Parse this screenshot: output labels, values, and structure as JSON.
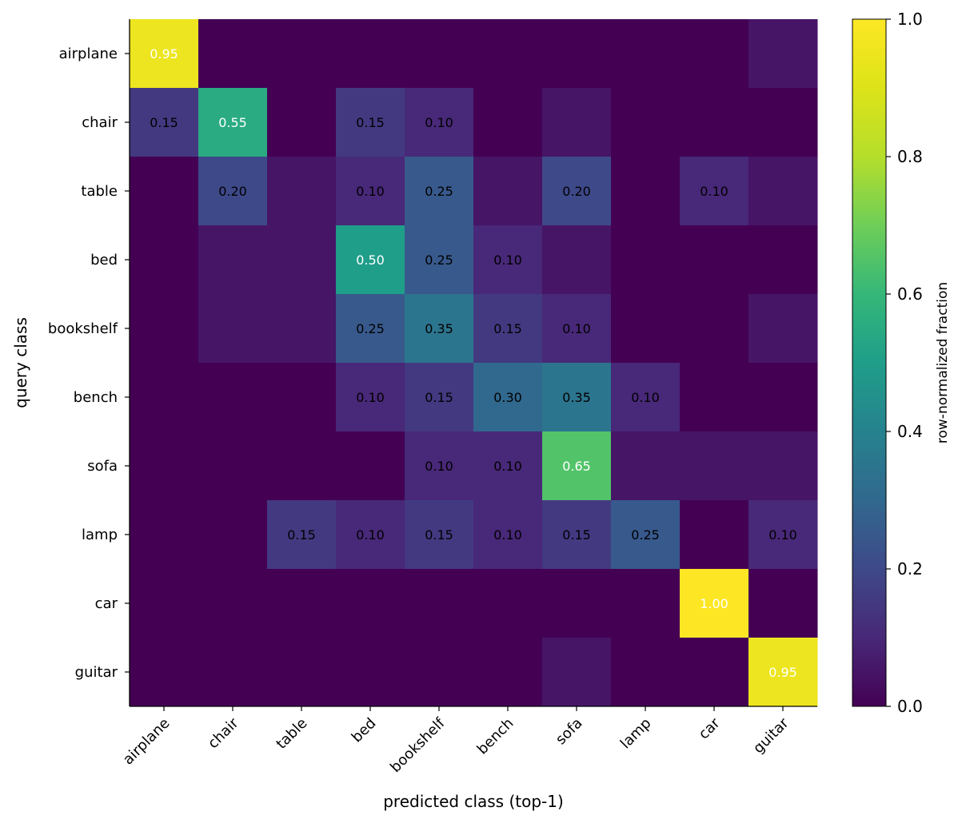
{
  "chart_data": {
    "type": "heatmap",
    "xlabel": "predicted class (top-1)",
    "ylabel": "query class",
    "x_categories": [
      "airplane",
      "chair",
      "table",
      "bed",
      "bookshelf",
      "bench",
      "sofa",
      "lamp",
      "car",
      "guitar"
    ],
    "y_categories": [
      "airplane",
      "chair",
      "table",
      "bed",
      "bookshelf",
      "bench",
      "sofa",
      "lamp",
      "car",
      "guitar"
    ],
    "values": [
      [
        0.95,
        0.0,
        0.0,
        0.0,
        0.0,
        0.0,
        0.0,
        0.0,
        0.0,
        0.05
      ],
      [
        0.15,
        0.55,
        0.0,
        0.15,
        0.1,
        0.0,
        0.05,
        0.0,
        0.0,
        0.0
      ],
      [
        0.0,
        0.2,
        0.05,
        0.1,
        0.25,
        0.05,
        0.2,
        0.0,
        0.1,
        0.05
      ],
      [
        0.0,
        0.05,
        0.05,
        0.5,
        0.25,
        0.1,
        0.05,
        0.0,
        0.0,
        0.0
      ],
      [
        0.0,
        0.05,
        0.05,
        0.25,
        0.35,
        0.15,
        0.1,
        0.0,
        0.0,
        0.05
      ],
      [
        0.0,
        0.0,
        0.0,
        0.1,
        0.15,
        0.3,
        0.35,
        0.1,
        0.0,
        0.0
      ],
      [
        0.0,
        0.0,
        0.0,
        0.0,
        0.1,
        0.1,
        0.65,
        0.05,
        0.05,
        0.05
      ],
      [
        0.0,
        0.0,
        0.15,
        0.1,
        0.15,
        0.1,
        0.15,
        0.25,
        0.0,
        0.1
      ],
      [
        0.0,
        0.0,
        0.0,
        0.0,
        0.0,
        0.0,
        0.0,
        0.0,
        1.0,
        0.0
      ],
      [
        0.0,
        0.0,
        0.0,
        0.0,
        0.0,
        0.0,
        0.05,
        0.0,
        0.0,
        0.95
      ]
    ],
    "annotation_threshold": 0.1,
    "value_format_decimals": 2,
    "colorbar": {
      "label": "row-normalized fraction",
      "range": [
        0.0,
        1.0
      ],
      "ticks": [
        0.0,
        0.2,
        0.4,
        0.6,
        0.8,
        1.0
      ],
      "tick_labels": [
        "0.0",
        "0.2",
        "0.4",
        "0.6",
        "0.8",
        "1.0"
      ]
    },
    "colormap": "viridis",
    "light_text_color": "#ffffff",
    "dark_text_color": "#000000"
  }
}
